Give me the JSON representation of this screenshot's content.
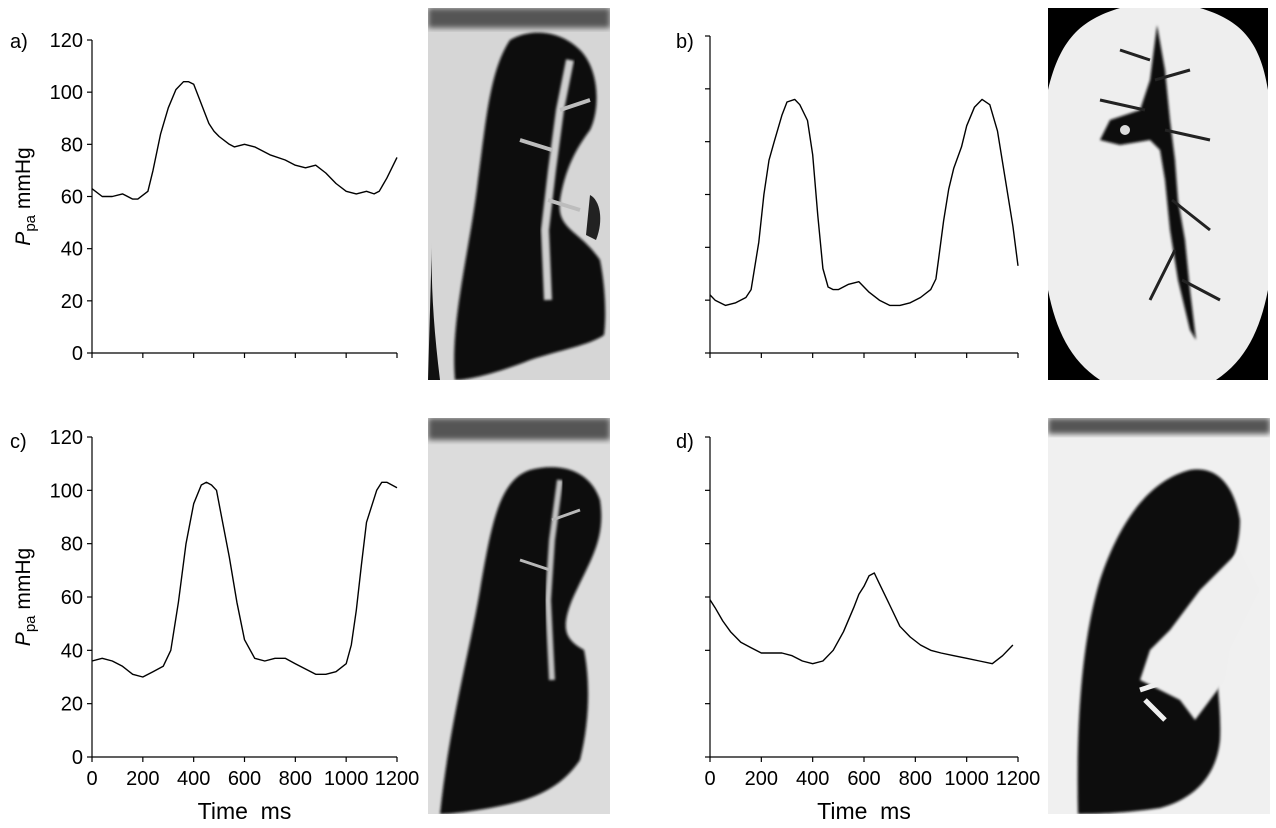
{
  "chart_data": [
    {
      "type": "line",
      "panel_label": "a)",
      "ylabel_main": "P",
      "ylabel_sub": "pa",
      "ylabel_unit": "mmHg",
      "xlabel": "",
      "xlim": [
        0,
        1200
      ],
      "ylim": [
        0,
        120
      ],
      "x_tick_labels_shown": false,
      "y_tick_labels_shown": true,
      "x_ticks": [
        "0",
        "200",
        "400",
        "600",
        "800",
        "1000",
        "1200"
      ],
      "y_ticks": [
        "0",
        "20",
        "40",
        "60",
        "80",
        "100",
        "120"
      ],
      "x": [
        0,
        40,
        80,
        120,
        160,
        180,
        220,
        240,
        270,
        300,
        330,
        360,
        380,
        400,
        420,
        440,
        460,
        480,
        500,
        540,
        560,
        600,
        640,
        700,
        760,
        800,
        840,
        880,
        920,
        960,
        1000,
        1040,
        1080,
        1110,
        1130,
        1160,
        1180,
        1200
      ],
      "y": [
        63,
        60,
        60,
        61,
        59,
        59,
        62,
        70,
        84,
        94,
        101,
        104,
        104,
        103,
        98,
        93,
        88,
        85,
        83,
        80,
        79,
        80,
        79,
        76,
        74,
        72,
        71,
        72,
        69,
        65,
        62,
        61,
        62,
        61,
        62,
        67,
        71,
        75
      ]
    },
    {
      "type": "line",
      "panel_label": "b)",
      "xlabel": "",
      "xlim": [
        0,
        1200
      ],
      "ylim": [
        0,
        120
      ],
      "x_tick_labels_shown": false,
      "y_tick_labels_shown": false,
      "x": [
        0,
        20,
        60,
        100,
        140,
        160,
        190,
        210,
        230,
        250,
        280,
        300,
        330,
        350,
        380,
        400,
        420,
        440,
        460,
        480,
        500,
        540,
        580,
        620,
        660,
        700,
        740,
        780,
        820,
        860,
        880,
        890,
        910,
        930,
        950,
        980,
        1000,
        1030,
        1060,
        1090,
        1120,
        1150,
        1180,
        1200
      ],
      "y": [
        22,
        20,
        18,
        19,
        21,
        24,
        42,
        60,
        73,
        80,
        90,
        95,
        96,
        94,
        88,
        75,
        52,
        32,
        25,
        24,
        24,
        26,
        27,
        23,
        20,
        18,
        18,
        19,
        21,
        24,
        28,
        35,
        50,
        62,
        70,
        78,
        86,
        93,
        96,
        94,
        84,
        66,
        48,
        33
      ]
    },
    {
      "type": "line",
      "panel_label": "c)",
      "ylabel_main": "P",
      "ylabel_sub": "pa",
      "ylabel_unit": "mmHg",
      "xlabel": "Time  ms",
      "xlim": [
        0,
        1200
      ],
      "ylim": [
        0,
        120
      ],
      "x_tick_labels_shown": true,
      "y_tick_labels_shown": true,
      "x_ticks": [
        "0",
        "200",
        "400",
        "600",
        "800",
        "1000",
        "1200"
      ],
      "y_ticks": [
        "0",
        "20",
        "40",
        "60",
        "80",
        "100",
        "120"
      ],
      "x": [
        0,
        40,
        80,
        120,
        160,
        200,
        240,
        280,
        310,
        340,
        370,
        400,
        430,
        450,
        470,
        490,
        510,
        540,
        570,
        600,
        640,
        680,
        720,
        760,
        800,
        840,
        880,
        920,
        960,
        1000,
        1020,
        1040,
        1060,
        1080,
        1100,
        1120,
        1140,
        1160,
        1180,
        1200
      ],
      "y": [
        36,
        37,
        36,
        34,
        31,
        30,
        32,
        34,
        40,
        58,
        80,
        95,
        102,
        103,
        102,
        100,
        90,
        75,
        58,
        44,
        37,
        36,
        37,
        37,
        35,
        33,
        31,
        31,
        32,
        35,
        42,
        55,
        72,
        88,
        94,
        100,
        103,
        103,
        102,
        101
      ]
    },
    {
      "type": "line",
      "panel_label": "d)",
      "xlabel": "Time  ms",
      "xlim": [
        0,
        1200
      ],
      "ylim": [
        0,
        120
      ],
      "x_tick_labels_shown": true,
      "y_tick_labels_shown": false,
      "x_ticks": [
        "0",
        "200",
        "400",
        "600",
        "800",
        "1000",
        "1200"
      ],
      "x": [
        0,
        20,
        50,
        80,
        120,
        160,
        200,
        240,
        280,
        320,
        360,
        400,
        440,
        480,
        520,
        560,
        580,
        600,
        620,
        640,
        660,
        700,
        740,
        780,
        820,
        860,
        900,
        950,
        1000,
        1050,
        1100,
        1140,
        1180
      ],
      "y": [
        59,
        56,
        51,
        47,
        43,
        41,
        39,
        39,
        39,
        38,
        36,
        35,
        36,
        40,
        47,
        56,
        61,
        64,
        68,
        69,
        65,
        57,
        49,
        45,
        42,
        40,
        39,
        38,
        37,
        36,
        35,
        38,
        42
      ]
    }
  ],
  "images": [
    {
      "name": "angiogram-a",
      "description": "pulmonary angiogram"
    },
    {
      "name": "angiogram-b",
      "description": "pulmonary angiogram"
    },
    {
      "name": "angiogram-c",
      "description": "pulmonary angiogram"
    },
    {
      "name": "angiogram-d",
      "description": "pulmonary angiogram"
    }
  ]
}
